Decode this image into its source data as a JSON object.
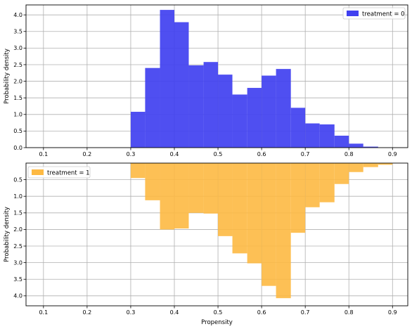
{
  "chart_data": [
    {
      "type": "bar",
      "orientation": "up",
      "bin_edges": [
        0.3,
        0.333,
        0.367,
        0.4,
        0.433,
        0.467,
        0.5,
        0.533,
        0.567,
        0.6,
        0.633,
        0.667,
        0.7,
        0.733,
        0.767,
        0.8,
        0.833,
        0.867
      ],
      "values": [
        1.08,
        2.4,
        4.15,
        3.78,
        2.48,
        2.58,
        2.2,
        1.6,
        1.8,
        2.17,
        2.37,
        1.2,
        0.73,
        0.7,
        0.36,
        0.12,
        0.03
      ],
      "series": [
        {
          "name": "treatment = 0",
          "color": "#4040f0"
        }
      ],
      "xlim": [
        0.06,
        0.935
      ],
      "ylim": [
        0,
        4.3
      ],
      "xticks": [
        "0.1",
        "0.2",
        "0.3",
        "0.4",
        "0.5",
        "0.6",
        "0.7",
        "0.8",
        "0.9"
      ],
      "yticks": [
        "0.0",
        "0.5",
        "1.0",
        "1.5",
        "2.0",
        "2.5",
        "3.0",
        "3.5",
        "4.0"
      ],
      "xlabel": "",
      "ylabel": "Probability density",
      "grid": true,
      "legend": "top-right"
    },
    {
      "type": "bar",
      "orientation": "down",
      "bin_edges": [
        0.3,
        0.333,
        0.367,
        0.4,
        0.433,
        0.467,
        0.5,
        0.533,
        0.567,
        0.6,
        0.633,
        0.667,
        0.7,
        0.733,
        0.767,
        0.8,
        0.833,
        0.867,
        0.9
      ],
      "values": [
        0.45,
        1.12,
        2.0,
        1.97,
        1.5,
        1.52,
        2.2,
        2.72,
        3.02,
        3.7,
        4.07,
        2.1,
        1.33,
        1.18,
        0.63,
        0.27,
        0.12,
        0.05
      ],
      "series": [
        {
          "name": "treatment = 1",
          "color": "#fdb943"
        }
      ],
      "xlim": [
        0.06,
        0.935
      ],
      "ylim": [
        0,
        4.3
      ],
      "xticks": [
        "0.1",
        "0.2",
        "0.3",
        "0.4",
        "0.5",
        "0.6",
        "0.7",
        "0.8",
        "0.9"
      ],
      "yticks": [
        "0.5",
        "1.0",
        "1.5",
        "2.0",
        "2.5",
        "3.0",
        "3.5",
        "4.0"
      ],
      "xlabel": "Propensity",
      "ylabel": "Probability density",
      "grid": true,
      "legend": "top-left"
    }
  ]
}
